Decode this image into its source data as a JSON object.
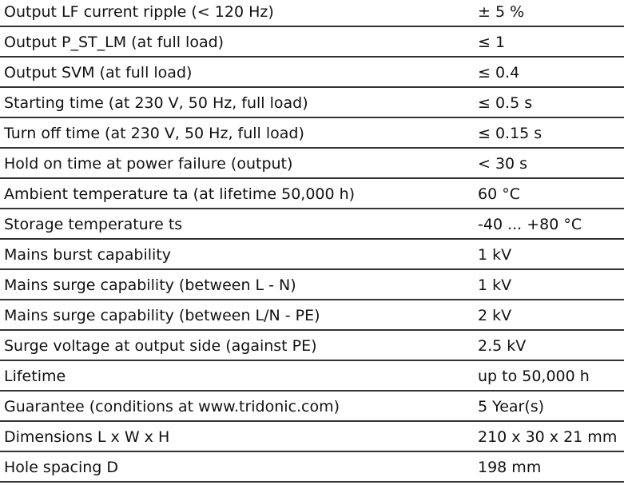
{
  "table": {
    "rows": [
      [
        "Output LF current ripple (< 120 Hz)",
        "± 5 %"
      ],
      [
        "Output P_ST_LM (at full load)",
        "≤ 1"
      ],
      [
        "Output SVM (at full load)",
        "≤ 0.4"
      ],
      [
        "Starting time (at 230 V, 50 Hz, full load)",
        "≤ 0.5 s"
      ],
      [
        "Turn off time (at 230 V, 50 Hz, full load)",
        "≤ 0.15 s"
      ],
      [
        "Hold on time at power failure (output)",
        "< 30 s"
      ],
      [
        "Ambient temperature ta (at lifetime 50,000 h)",
        "60 °C"
      ],
      [
        "Storage temperature ts",
        "-40 ... +80 °C"
      ],
      [
        "Mains burst capability",
        "1 kV"
      ],
      [
        "Mains surge capability (between L - N)",
        "1 kV"
      ],
      [
        "Mains surge capability (between L/N - PE)",
        "2 kV"
      ],
      [
        "Surge voltage at output side (against PE)",
        "2.5 kV"
      ],
      [
        "Lifetime",
        "up to 50,000 h"
      ],
      [
        "Guarantee (conditions at www.tridonic.com)",
        "5 Year(s)"
      ],
      [
        "Dimensions L x W x H",
        "210 x 30 x 21 mm"
      ],
      [
        "Hole spacing D",
        "198 mm"
      ]
    ]
  }
}
